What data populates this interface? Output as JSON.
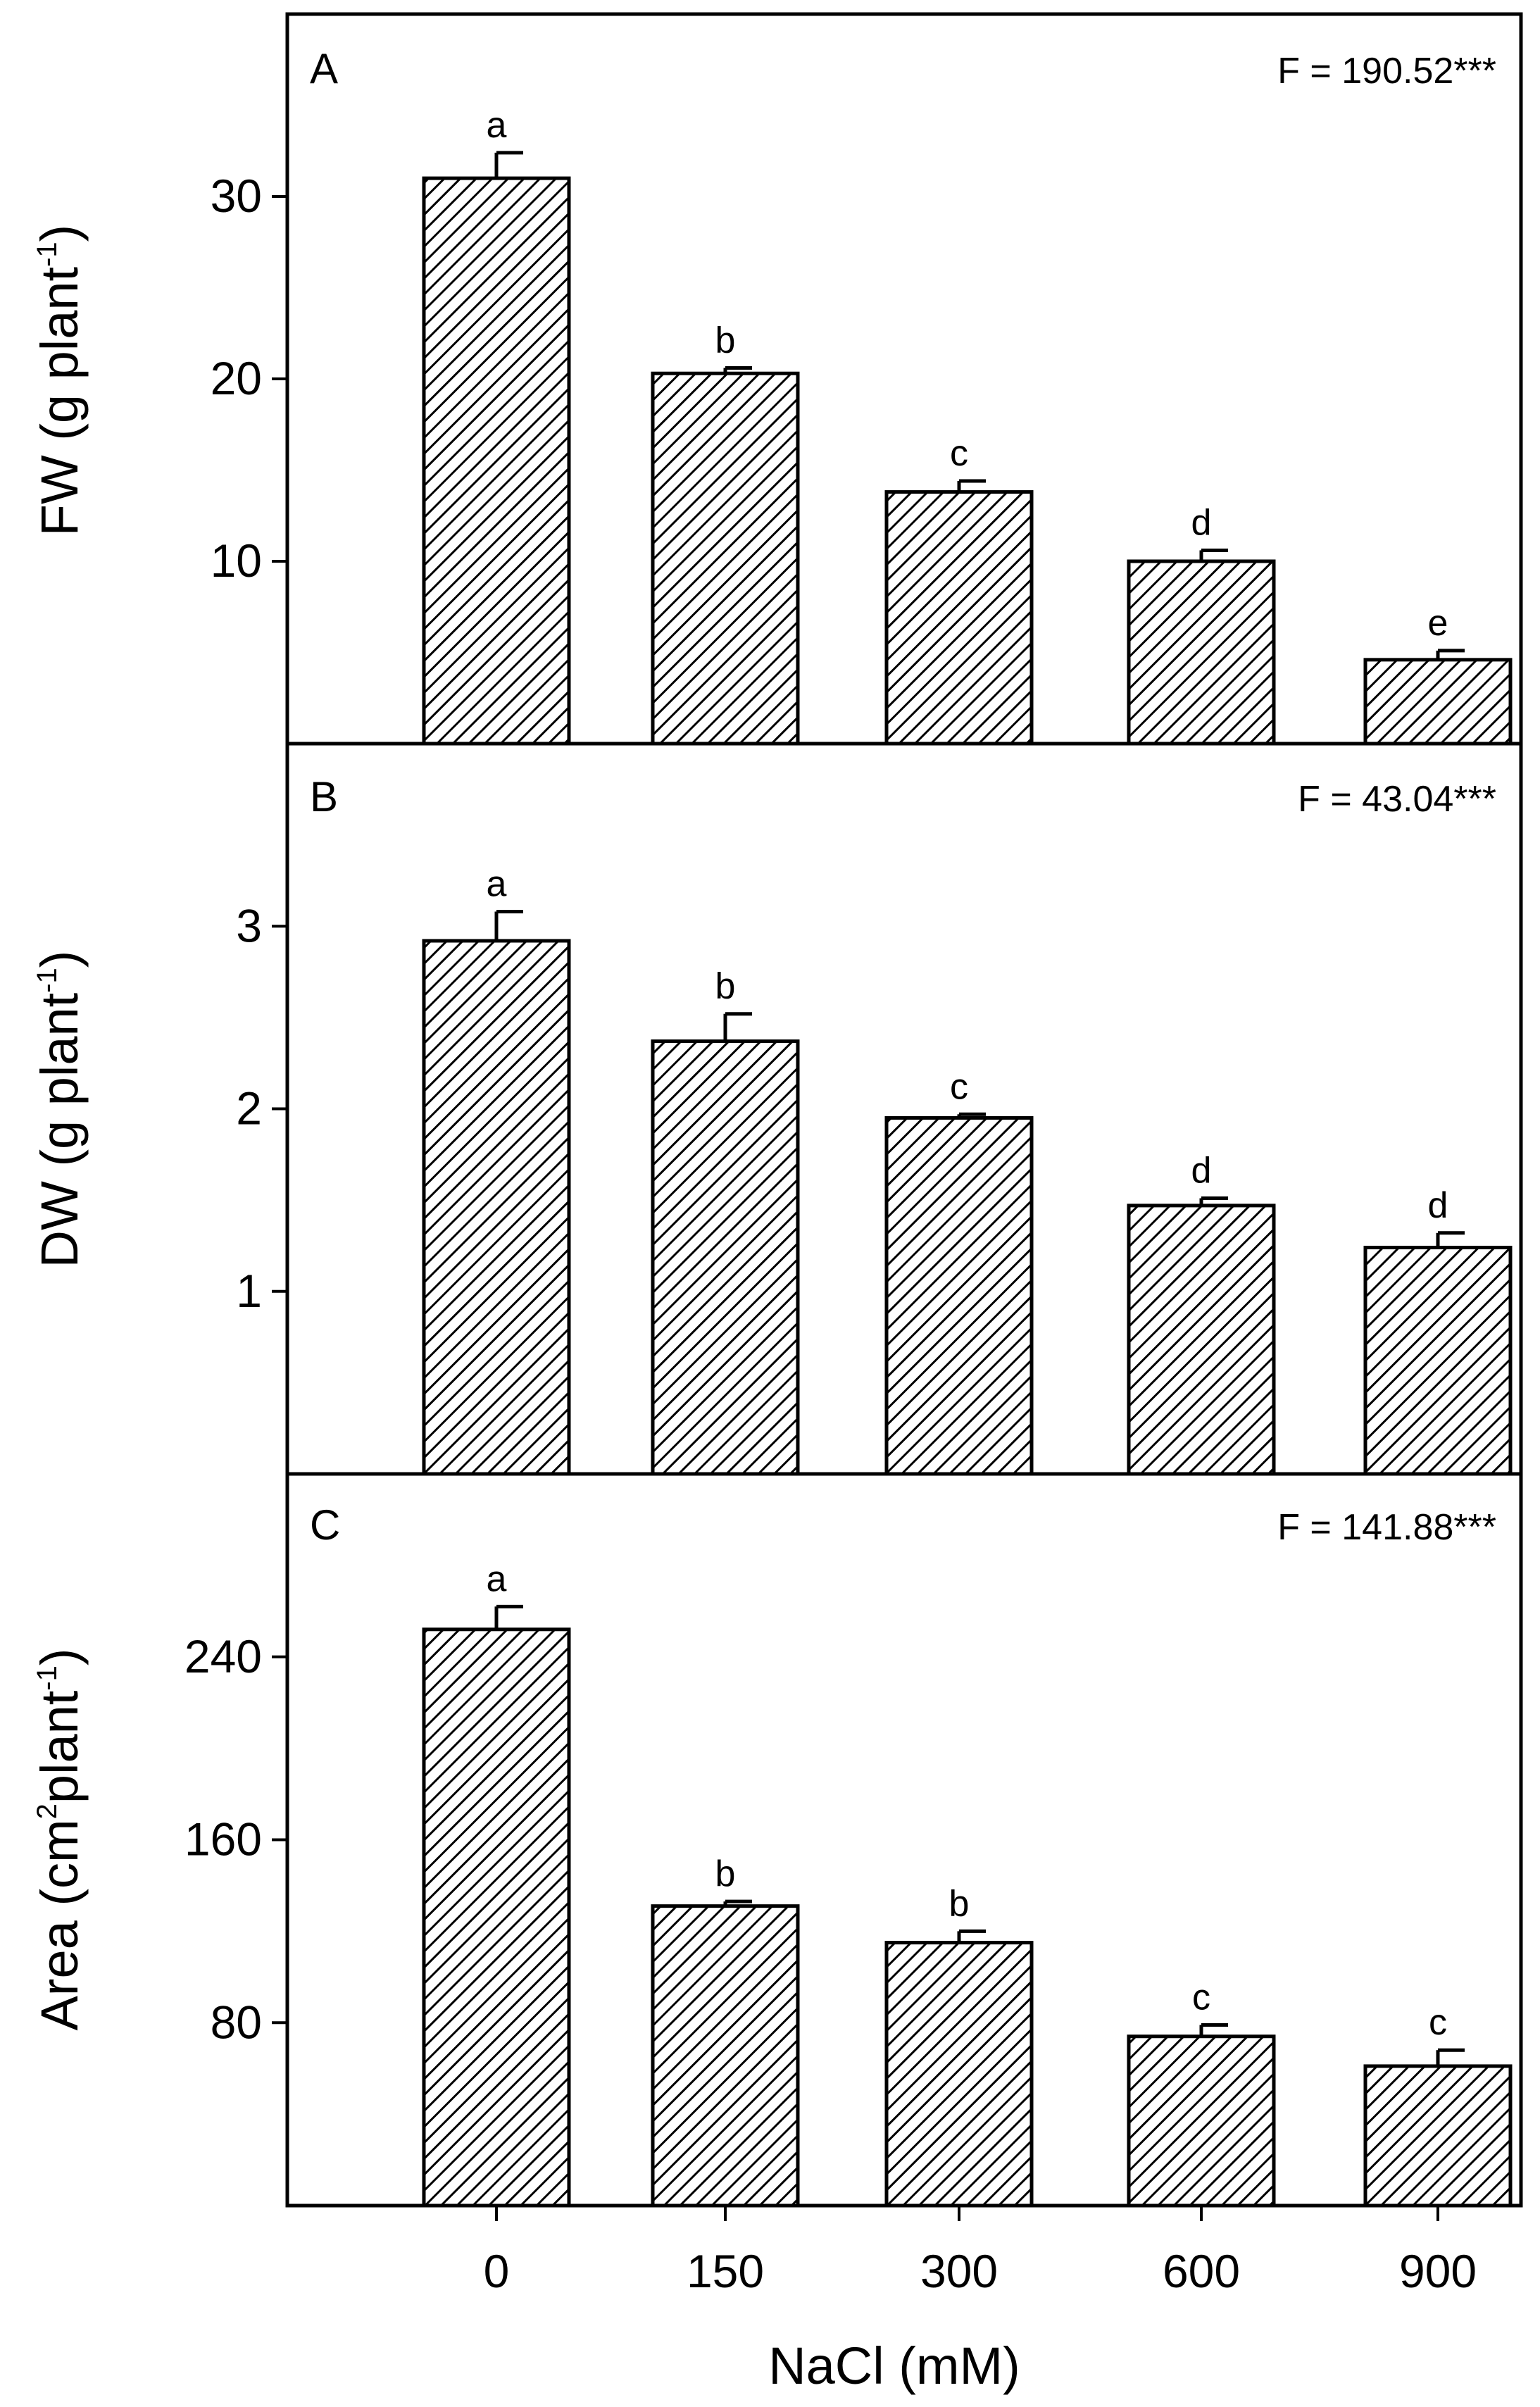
{
  "chart_data": [
    {
      "type": "bar",
      "panel": "A",
      "stat": "F = 190.52***",
      "ylabel": "FW (g plant",
      "ylabel_sup": "-1",
      "ylabel_end": ")",
      "ylim": [
        0,
        40
      ],
      "yticks": [
        10,
        20,
        30
      ],
      "categories": [
        "0",
        "150",
        "300",
        "600",
        "900"
      ],
      "values": [
        31.0,
        20.3,
        13.8,
        10.0,
        4.6
      ],
      "errors": [
        1.4,
        0.3,
        0.6,
        0.6,
        0.5
      ],
      "letters": [
        "a",
        "b",
        "c",
        "d",
        "e"
      ]
    },
    {
      "type": "bar",
      "panel": "B",
      "stat": "F = 43.04***",
      "ylabel": "DW (g plant",
      "ylabel_sup": "-1",
      "ylabel_end": ")",
      "ylim": [
        0,
        4
      ],
      "yticks": [
        1,
        2,
        3
      ],
      "categories": [
        "0",
        "150",
        "300",
        "600",
        "900"
      ],
      "values": [
        2.92,
        2.37,
        1.95,
        1.47,
        1.24
      ],
      "errors": [
        0.16,
        0.15,
        0.02,
        0.04,
        0.08
      ],
      "letters": [
        "a",
        "b",
        "c",
        "d",
        "d"
      ]
    },
    {
      "type": "bar",
      "panel": "C",
      "stat": "F = 141.88***",
      "ylabel": "Area (cm",
      "ylabel_sup": "2",
      "ylabel_mid": "plant",
      "ylabel_sup2": "-1",
      "ylabel_end": ")",
      "ylim": [
        0,
        320
      ],
      "yticks": [
        80,
        160,
        240
      ],
      "categories": [
        "0",
        "150",
        "300",
        "600",
        "900"
      ],
      "values": [
        252,
        131,
        115,
        74,
        61
      ],
      "errors": [
        10,
        2,
        5,
        5,
        7
      ],
      "letters": [
        "a",
        "b",
        "b",
        "c",
        "c"
      ]
    }
  ],
  "xlabel": "NaCl (mM)"
}
